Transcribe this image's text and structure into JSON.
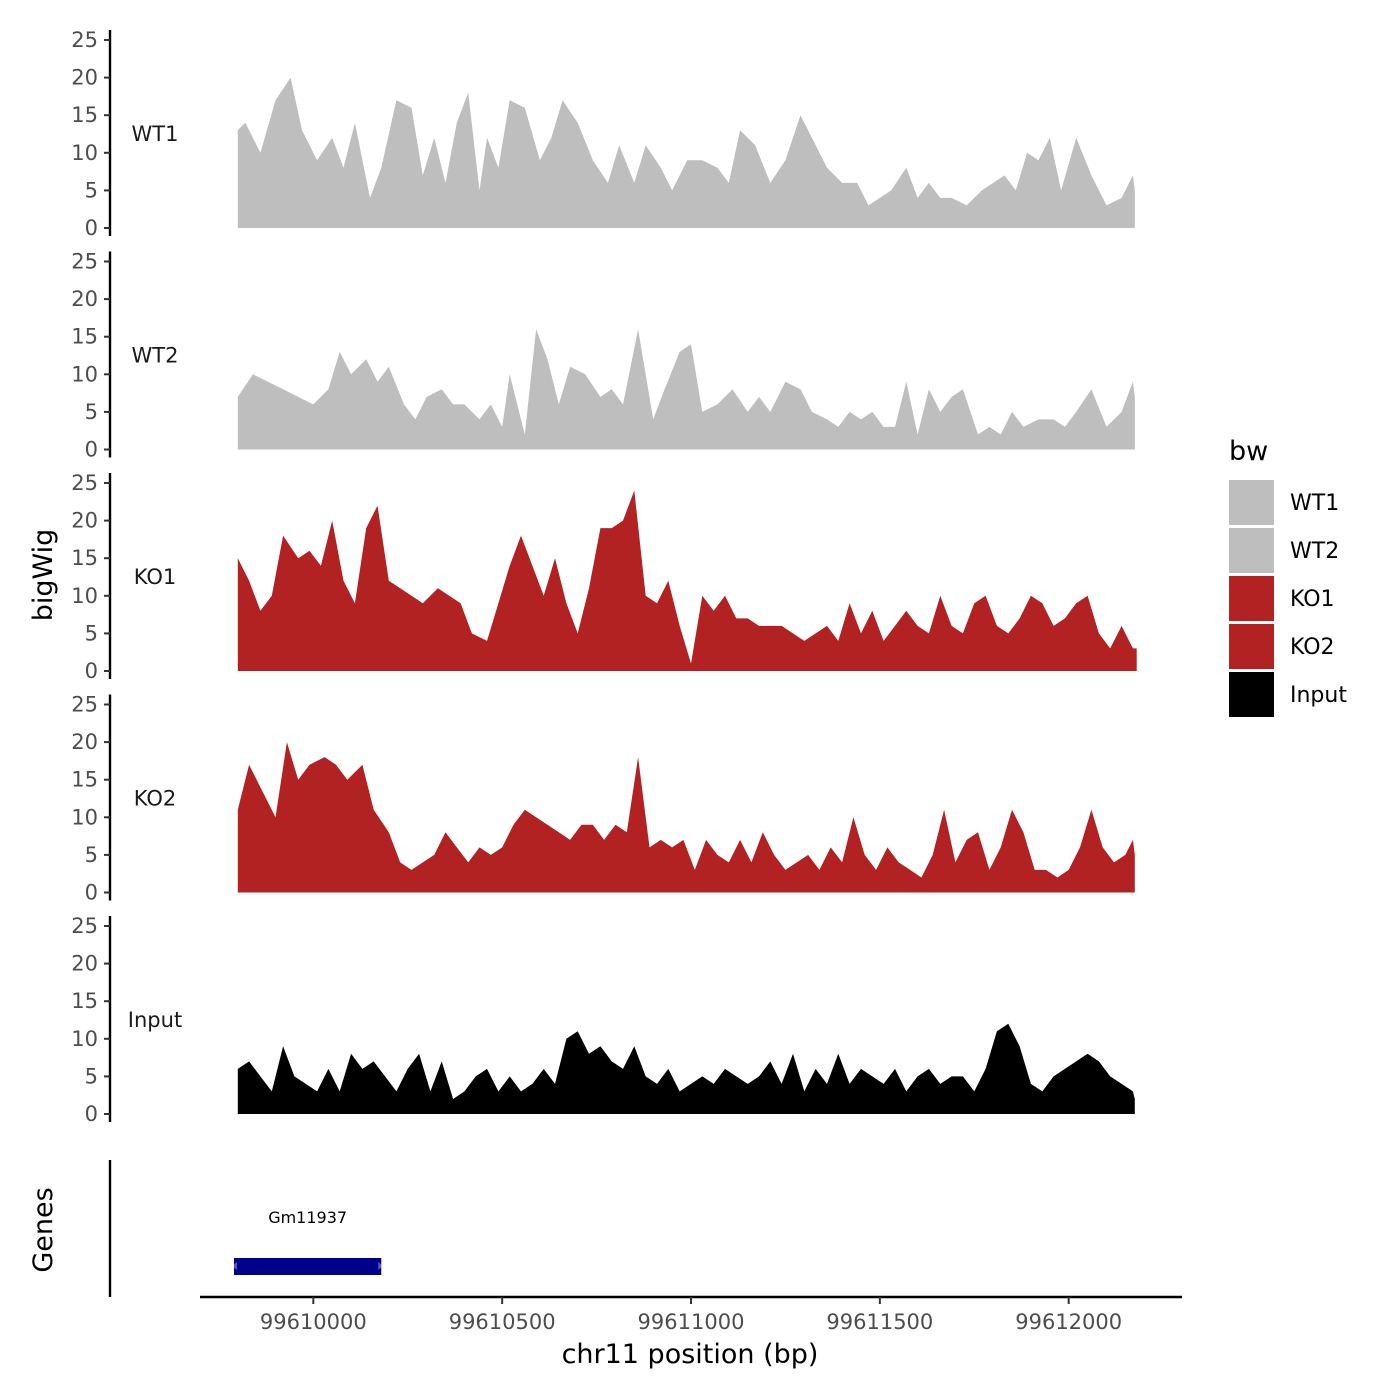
{
  "chart_data": {
    "type": "area",
    "xlabel": "chr11 position (bp)",
    "ylabel": "bigWig",
    "genes_label": "Genes",
    "ylim": [
      0,
      25
    ],
    "yticks": [
      0,
      5,
      10,
      15,
      20,
      25
    ],
    "xlim": [
      99609700,
      99612300
    ],
    "xticks": [
      99610000,
      99610500,
      99611000,
      99611500,
      99612000
    ],
    "xtick_labels": [
      "99610000",
      "99610500",
      "99611000",
      "99611500",
      "99612000"
    ],
    "legend_title": "bw",
    "series": [
      {
        "name": "WT1",
        "color": "#bebebe",
        "x": [
          99609800,
          99609820,
          99609860,
          99609900,
          99609940,
          99609970,
          99610010,
          99610050,
          99610080,
          99610110,
          99610150,
          99610180,
          99610220,
          99610260,
          99610290,
          99610320,
          99610350,
          99610380,
          99610410,
          99610440,
          99610460,
          99610490,
          99610520,
          99610560,
          99610600,
          99610630,
          99610660,
          99610700,
          99610740,
          99610780,
          99610810,
          99610850,
          99610880,
          99610920,
          99610950,
          99610990,
          99611030,
          99611070,
          99611100,
          99611130,
          99611170,
          99611210,
          99611250,
          99611290,
          99611320,
          99611360,
          99611400,
          99611440,
          99611470,
          99611500,
          99611530,
          99611570,
          99611600,
          99611630,
          99611660,
          99611690,
          99611730,
          99611770,
          99611800,
          99611830,
          99611860,
          99611890,
          99611920,
          99611950,
          99611980,
          99612020,
          99612060,
          99612100,
          99612140,
          99612170,
          99612175
        ],
        "values": [
          13,
          14,
          10,
          17,
          20,
          13,
          9,
          12,
          8,
          14,
          4,
          8,
          17,
          16,
          7,
          12,
          6,
          14,
          18,
          5,
          12,
          8,
          17,
          16,
          9,
          12,
          17,
          14,
          9,
          6,
          11,
          6,
          11,
          8,
          5,
          9,
          9,
          8,
          6,
          13,
          11,
          6,
          9,
          15,
          12,
          8,
          6,
          6,
          3,
          4,
          5,
          8,
          4,
          6,
          4,
          4,
          3,
          5,
          6,
          7,
          5,
          10,
          9,
          12,
          5,
          12,
          7,
          3,
          4,
          7,
          5
        ]
      },
      {
        "name": "WT2",
        "color": "#bebebe",
        "x": [
          99609800,
          99609840,
          99609880,
          99609920,
          99609960,
          99610000,
          99610040,
          99610070,
          99610100,
          99610140,
          99610170,
          99610200,
          99610240,
          99610270,
          99610300,
          99610340,
          99610370,
          99610400,
          99610440,
          99610470,
          99610500,
          99610520,
          99610560,
          99610590,
          99610620,
          99610650,
          99610680,
          99610720,
          99610760,
          99610790,
          99610820,
          99610860,
          99610900,
          99610930,
          99610970,
          99611000,
          99611030,
          99611070,
          99611110,
          99611150,
          99611180,
          99611210,
          99611250,
          99611290,
          99611320,
          99611360,
          99611390,
          99611420,
          99611450,
          99611480,
          99611510,
          99611540,
          99611570,
          99611600,
          99611630,
          99611660,
          99611690,
          99611720,
          99611760,
          99611790,
          99611820,
          99611850,
          99611880,
          99611920,
          99611960,
          99611990,
          99612020,
          99612060,
          99612100,
          99612140,
          99612170,
          99612175
        ],
        "values": [
          7,
          10,
          9,
          8,
          7,
          6,
          8,
          13,
          10,
          12,
          9,
          11,
          6,
          4,
          7,
          8,
          6,
          6,
          4,
          6,
          3,
          10,
          2,
          16,
          12,
          6,
          11,
          10,
          7,
          8,
          6,
          16,
          4,
          8,
          13,
          14,
          5,
          6,
          8,
          5,
          7,
          5,
          9,
          8,
          5,
          4,
          3,
          5,
          4,
          5,
          3,
          3,
          9,
          2,
          8,
          5,
          7,
          8,
          2,
          3,
          2,
          5,
          3,
          4,
          4,
          3,
          5,
          8,
          3,
          5,
          9,
          7
        ]
      },
      {
        "name": "KO1",
        "color": "#b22222",
        "x": [
          99609800,
          99609830,
          99609860,
          99609890,
          99609920,
          99609960,
          99609990,
          99610020,
          99610050,
          99610080,
          99610110,
          99610140,
          99610170,
          99610200,
          99610230,
          99610260,
          99610290,
          99610330,
          99610360,
          99610390,
          99610420,
          99610460,
          99610490,
          99610520,
          99610550,
          99610580,
          99610610,
          99610640,
          99610670,
          99610700,
          99610730,
          99610760,
          99610790,
          99610820,
          99610850,
          99610880,
          99610910,
          99610940,
          99610970,
          99611000,
          99611030,
          99611060,
          99611090,
          99611120,
          99611150,
          99611180,
          99611210,
          99611240,
          99611270,
          99611300,
          99611330,
          99611360,
          99611390,
          99611420,
          99611450,
          99611480,
          99611510,
          99611540,
          99611570,
          99611600,
          99611630,
          99611660,
          99611690,
          99611720,
          99611750,
          99611780,
          99611810,
          99611840,
          99611870,
          99611900,
          99611930,
          99611960,
          99611990,
          99612020,
          99612050,
          99612080,
          99612110,
          99612140,
          99612170,
          99612180
        ],
        "values": [
          15,
          12,
          8,
          10,
          18,
          15,
          16,
          14,
          20,
          12,
          9,
          19,
          22,
          12,
          11,
          10,
          9,
          11,
          10,
          9,
          5,
          4,
          9,
          14,
          18,
          14,
          10,
          15,
          9,
          5,
          11,
          19,
          19,
          20,
          24,
          10,
          9,
          12,
          6,
          1,
          10,
          8,
          10,
          7,
          7,
          6,
          6,
          6,
          5,
          4,
          5,
          6,
          4,
          9,
          5,
          8,
          4,
          6,
          8,
          6,
          5,
          10,
          6,
          5,
          9,
          10,
          6,
          5,
          7,
          10,
          9,
          6,
          7,
          9,
          10,
          5,
          3,
          6,
          3,
          3
        ]
      },
      {
        "name": "KO2",
        "color": "#b22222",
        "x": [
          99609800,
          99609830,
          99609860,
          99609900,
          99609930,
          99609960,
          99609990,
          99610030,
          99610060,
          99610090,
          99610130,
          99610160,
          99610200,
          99610230,
          99610260,
          99610290,
          99610320,
          99610350,
          99610380,
          99610410,
          99610440,
          99610470,
          99610500,
          99610530,
          99610560,
          99610590,
          99610620,
          99610650,
          99610680,
          99610710,
          99610740,
          99610770,
          99610800,
          99610830,
          99610860,
          99610890,
          99610920,
          99610950,
          99610980,
          99611010,
          99611040,
          99611070,
          99611100,
          99611130,
          99611160,
          99611190,
          99611220,
          99611250,
          99611280,
          99611310,
          99611340,
          99611370,
          99611400,
          99611430,
          99611460,
          99611490,
          99611520,
          99611550,
          99611580,
          99611610,
          99611640,
          99611670,
          99611700,
          99611730,
          99611760,
          99611790,
          99611820,
          99611850,
          99611880,
          99611910,
          99611940,
          99611970,
          99612000,
          99612030,
          99612060,
          99612090,
          99612120,
          99612150,
          99612170,
          99612175
        ],
        "values": [
          11,
          17,
          14,
          10,
          20,
          15,
          17,
          18,
          17,
          15,
          17,
          11,
          8,
          4,
          3,
          4,
          5,
          8,
          6,
          4,
          6,
          5,
          6,
          9,
          11,
          10,
          9,
          8,
          7,
          9,
          9,
          7,
          9,
          8,
          18,
          6,
          7,
          6,
          7,
          3,
          7,
          5,
          4,
          7,
          4,
          8,
          5,
          3,
          4,
          5,
          3,
          6,
          4,
          10,
          5,
          3,
          6,
          4,
          3,
          2,
          5,
          11,
          4,
          7,
          8,
          3,
          6,
          11,
          8,
          3,
          3,
          2,
          3,
          6,
          11,
          6,
          4,
          5,
          7,
          5
        ]
      },
      {
        "name": "Input",
        "color": "#000000",
        "x": [
          99609800,
          99609830,
          99609860,
          99609890,
          99609920,
          99609950,
          99609980,
          99610010,
          99610040,
          99610070,
          99610100,
          99610130,
          99610160,
          99610190,
          99610220,
          99610250,
          99610280,
          99610310,
          99610340,
          99610370,
          99610400,
          99610430,
          99610460,
          99610490,
          99610520,
          99610550,
          99610580,
          99610610,
          99610640,
          99610670,
          99610700,
          99610730,
          99610760,
          99610790,
          99610820,
          99610850,
          99610880,
          99610910,
          99610940,
          99610970,
          99611000,
          99611030,
          99611060,
          99611090,
          99611120,
          99611150,
          99611180,
          99611210,
          99611240,
          99611270,
          99611300,
          99611330,
          99611360,
          99611390,
          99611420,
          99611450,
          99611480,
          99611510,
          99611540,
          99611570,
          99611600,
          99611630,
          99611660,
          99611690,
          99611720,
          99611750,
          99611780,
          99611810,
          99611840,
          99611870,
          99611900,
          99611930,
          99611960,
          99611990,
          99612020,
          99612050,
          99612080,
          99612110,
          99612140,
          99612170,
          99612175
        ],
        "values": [
          6,
          7,
          5,
          3,
          9,
          5,
          4,
          3,
          6,
          3,
          8,
          6,
          7,
          5,
          3,
          6,
          8,
          3,
          7,
          2,
          3,
          5,
          6,
          3,
          5,
          3,
          4,
          6,
          4,
          10,
          11,
          8,
          9,
          7,
          6,
          9,
          5,
          4,
          6,
          3,
          4,
          5,
          4,
          6,
          5,
          4,
          5,
          7,
          4,
          8,
          3,
          6,
          4,
          8,
          4,
          6,
          5,
          4,
          6,
          3,
          5,
          6,
          4,
          5,
          5,
          3,
          6,
          11,
          12,
          9,
          4,
          3,
          5,
          6,
          7,
          8,
          7,
          5,
          4,
          3,
          2
        ]
      }
    ],
    "genes": [
      {
        "name": "Gm11937",
        "start": 99609790,
        "end": 99610180,
        "color": "#00008b"
      }
    ]
  }
}
